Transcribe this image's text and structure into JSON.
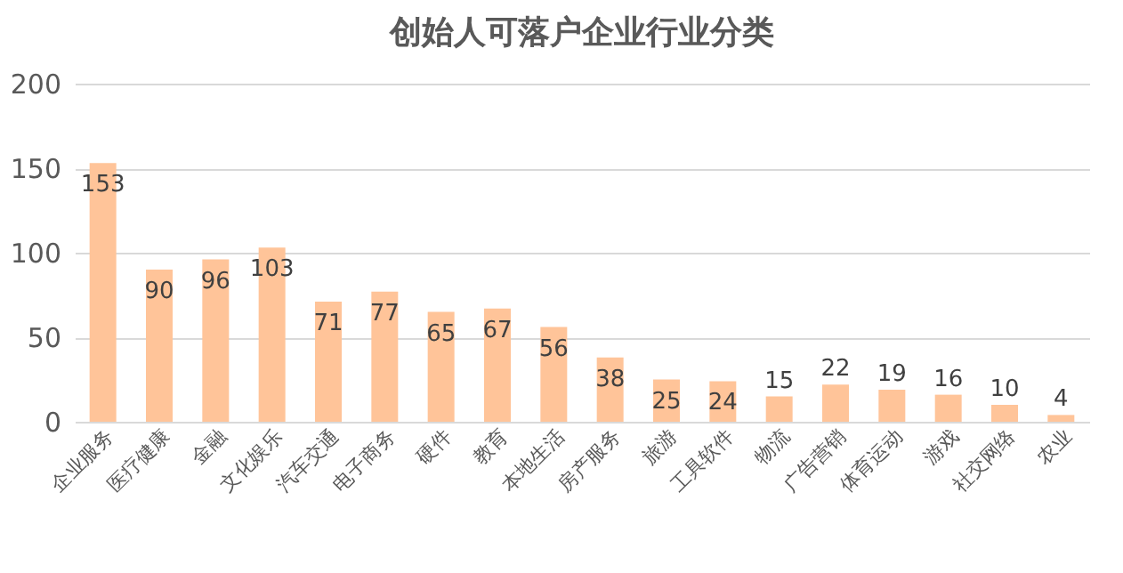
{
  "chart_data": {
    "type": "bar",
    "title": "创始人可落户企业行业分类",
    "categories": [
      "企业服务",
      "医疗健康",
      "金融",
      "文化娱乐",
      "汽车交通",
      "电子商务",
      "硬件",
      "教育",
      "本地生活",
      "房产服务",
      "旅游",
      "工具软件",
      "物流",
      "广告营销",
      "体育运动",
      "游戏",
      "社交网络",
      "农业"
    ],
    "values": [
      153,
      90,
      96,
      103,
      71,
      77,
      65,
      67,
      56,
      38,
      25,
      24,
      15,
      22,
      19,
      16,
      10,
      4
    ],
    "color": "#ffc499",
    "ylim": [
      0,
      200
    ],
    "yticks": [
      0,
      50,
      100,
      150,
      200
    ],
    "grid": "y",
    "data_labels": true
  }
}
